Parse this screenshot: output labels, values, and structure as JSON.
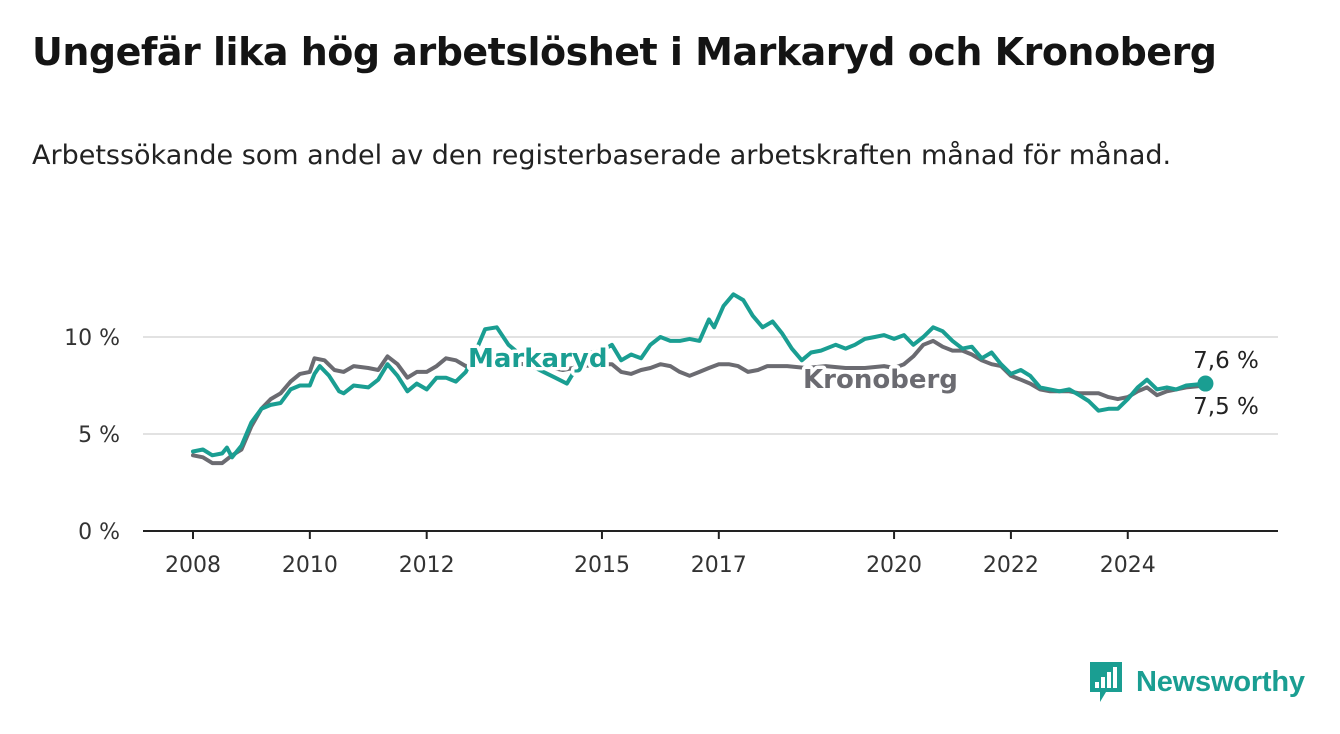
{
  "header": {
    "title": "Ungefär lika hög arbetslöshet i Markaryd och Kronoberg",
    "subtitle": "Arbetssökande som andel av den registerbaserade arbetskraften månad för månad."
  },
  "brand": {
    "name": "Newsworthy",
    "icon": "newsworthy-logo-icon",
    "color": "#1a9e92"
  },
  "chart_data": {
    "type": "line",
    "title": "Ungefär lika hög arbetslöshet i Markaryd och Kronoberg",
    "subtitle": "Arbetssökande som andel av den registerbaserade arbetskraften månad för månad.",
    "xlabel": "",
    "ylabel": "",
    "xlim": [
      2008.0,
      2025.75
    ],
    "ylim": [
      0,
      10
    ],
    "y_ticks": [
      0,
      5,
      10
    ],
    "y_tick_labels": [
      "0 %",
      "5 %",
      "10 %"
    ],
    "x_ticks": [
      2008,
      2010,
      2012,
      2015,
      2017,
      2020,
      2022,
      2024
    ],
    "x_tick_labels": [
      "2008",
      "2010",
      "2012",
      "2015",
      "2017",
      "2020",
      "2022",
      "2024"
    ],
    "grid": true,
    "legend": "inline labels",
    "series": [
      {
        "name": "Markaryd",
        "color": "#1a9e92",
        "end_label": "7,6 %",
        "points": [
          [
            2008.0,
            4.1
          ],
          [
            2008.17,
            4.2
          ],
          [
            2008.33,
            3.9
          ],
          [
            2008.5,
            4.0
          ],
          [
            2008.58,
            4.3
          ],
          [
            2008.67,
            3.8
          ],
          [
            2008.83,
            4.4
          ],
          [
            2009.0,
            5.6
          ],
          [
            2009.17,
            6.3
          ],
          [
            2009.33,
            6.5
          ],
          [
            2009.5,
            6.6
          ],
          [
            2009.67,
            7.3
          ],
          [
            2009.83,
            7.5
          ],
          [
            2010.0,
            7.5
          ],
          [
            2010.08,
            8.1
          ],
          [
            2010.17,
            8.5
          ],
          [
            2010.33,
            8.0
          ],
          [
            2010.5,
            7.2
          ],
          [
            2010.58,
            7.1
          ],
          [
            2010.75,
            7.5
          ],
          [
            2011.0,
            7.4
          ],
          [
            2011.17,
            7.8
          ],
          [
            2011.33,
            8.6
          ],
          [
            2011.5,
            8.0
          ],
          [
            2011.67,
            7.2
          ],
          [
            2011.83,
            7.6
          ],
          [
            2012.0,
            7.3
          ],
          [
            2012.17,
            7.9
          ],
          [
            2012.33,
            7.9
          ],
          [
            2012.5,
            7.7
          ],
          [
            2012.67,
            8.2
          ],
          [
            2012.83,
            9.2
          ],
          [
            2013.0,
            10.4
          ],
          [
            2013.2,
            10.5
          ],
          [
            2013.4,
            9.6
          ],
          [
            2013.6,
            9.1
          ],
          [
            2013.8,
            8.5
          ],
          [
            2014.0,
            8.2
          ],
          [
            2014.2,
            7.9
          ],
          [
            2014.4,
            7.6
          ],
          [
            2014.6,
            8.6
          ],
          [
            2014.8,
            9.2
          ],
          [
            2015.0,
            9.3
          ],
          [
            2015.17,
            9.6
          ],
          [
            2015.33,
            8.8
          ],
          [
            2015.5,
            9.1
          ],
          [
            2015.67,
            8.9
          ],
          [
            2015.83,
            9.6
          ],
          [
            2016.0,
            10.0
          ],
          [
            2016.17,
            9.8
          ],
          [
            2016.33,
            9.8
          ],
          [
            2016.5,
            9.9
          ],
          [
            2016.67,
            9.8
          ],
          [
            2016.83,
            10.9
          ],
          [
            2016.92,
            10.5
          ],
          [
            2017.08,
            11.6
          ],
          [
            2017.25,
            12.2
          ],
          [
            2017.42,
            11.9
          ],
          [
            2017.58,
            11.1
          ],
          [
            2017.75,
            10.5
          ],
          [
            2017.92,
            10.8
          ],
          [
            2018.08,
            10.2
          ],
          [
            2018.25,
            9.4
          ],
          [
            2018.42,
            8.8
          ],
          [
            2018.58,
            9.2
          ],
          [
            2018.75,
            9.3
          ],
          [
            2019.0,
            9.6
          ],
          [
            2019.17,
            9.4
          ],
          [
            2019.33,
            9.6
          ],
          [
            2019.5,
            9.9
          ],
          [
            2019.67,
            10.0
          ],
          [
            2019.83,
            10.1
          ],
          [
            2020.0,
            9.9
          ],
          [
            2020.17,
            10.1
          ],
          [
            2020.33,
            9.6
          ],
          [
            2020.5,
            10.0
          ],
          [
            2020.67,
            10.5
          ],
          [
            2020.83,
            10.3
          ],
          [
            2021.0,
            9.8
          ],
          [
            2021.17,
            9.4
          ],
          [
            2021.33,
            9.5
          ],
          [
            2021.5,
            8.9
          ],
          [
            2021.67,
            9.2
          ],
          [
            2021.83,
            8.6
          ],
          [
            2022.0,
            8.1
          ],
          [
            2022.17,
            8.3
          ],
          [
            2022.33,
            8.0
          ],
          [
            2022.5,
            7.4
          ],
          [
            2022.67,
            7.3
          ],
          [
            2022.83,
            7.2
          ],
          [
            2023.0,
            7.3
          ],
          [
            2023.17,
            7.0
          ],
          [
            2023.33,
            6.7
          ],
          [
            2023.5,
            6.2
          ],
          [
            2023.67,
            6.3
          ],
          [
            2023.83,
            6.3
          ],
          [
            2024.0,
            6.8
          ],
          [
            2024.17,
            7.4
          ],
          [
            2024.33,
            7.8
          ],
          [
            2024.5,
            7.3
          ],
          [
            2024.67,
            7.4
          ],
          [
            2024.83,
            7.3
          ],
          [
            2025.0,
            7.5
          ],
          [
            2025.33,
            7.6
          ]
        ]
      },
      {
        "name": "Kronoberg",
        "color": "#6b6b71",
        "end_label": "7,5 %",
        "points": [
          [
            2008.0,
            3.9
          ],
          [
            2008.17,
            3.8
          ],
          [
            2008.33,
            3.5
          ],
          [
            2008.5,
            3.5
          ],
          [
            2008.67,
            3.9
          ],
          [
            2008.83,
            4.2
          ],
          [
            2009.0,
            5.4
          ],
          [
            2009.17,
            6.3
          ],
          [
            2009.33,
            6.8
          ],
          [
            2009.5,
            7.1
          ],
          [
            2009.67,
            7.7
          ],
          [
            2009.83,
            8.1
          ],
          [
            2010.0,
            8.2
          ],
          [
            2010.08,
            8.9
          ],
          [
            2010.25,
            8.8
          ],
          [
            2010.42,
            8.3
          ],
          [
            2010.58,
            8.2
          ],
          [
            2010.75,
            8.5
          ],
          [
            2011.0,
            8.4
          ],
          [
            2011.17,
            8.3
          ],
          [
            2011.33,
            9.0
          ],
          [
            2011.5,
            8.6
          ],
          [
            2011.67,
            7.9
          ],
          [
            2011.83,
            8.2
          ],
          [
            2012.0,
            8.2
          ],
          [
            2012.17,
            8.5
          ],
          [
            2012.33,
            8.9
          ],
          [
            2012.5,
            8.8
          ],
          [
            2012.67,
            8.5
          ],
          [
            2012.83,
            8.6
          ],
          [
            2013.0,
            8.7
          ],
          [
            2013.33,
            8.7
          ],
          [
            2013.67,
            8.6
          ],
          [
            2014.0,
            8.5
          ],
          [
            2014.33,
            8.3
          ],
          [
            2014.67,
            8.5
          ],
          [
            2015.0,
            8.6
          ],
          [
            2015.17,
            8.6
          ],
          [
            2015.33,
            8.2
          ],
          [
            2015.5,
            8.1
          ],
          [
            2015.67,
            8.3
          ],
          [
            2015.83,
            8.4
          ],
          [
            2016.0,
            8.6
          ],
          [
            2016.17,
            8.5
          ],
          [
            2016.33,
            8.2
          ],
          [
            2016.5,
            8.0
          ],
          [
            2016.67,
            8.2
          ],
          [
            2016.83,
            8.4
          ],
          [
            2017.0,
            8.6
          ],
          [
            2017.17,
            8.6
          ],
          [
            2017.33,
            8.5
          ],
          [
            2017.5,
            8.2
          ],
          [
            2017.67,
            8.3
          ],
          [
            2017.83,
            8.5
          ],
          [
            2018.0,
            8.5
          ],
          [
            2018.17,
            8.5
          ],
          [
            2018.5,
            8.4
          ],
          [
            2018.83,
            8.5
          ],
          [
            2019.17,
            8.4
          ],
          [
            2019.5,
            8.4
          ],
          [
            2019.83,
            8.5
          ],
          [
            2020.0,
            8.4
          ],
          [
            2020.17,
            8.6
          ],
          [
            2020.33,
            9.0
          ],
          [
            2020.5,
            9.6
          ],
          [
            2020.67,
            9.8
          ],
          [
            2020.83,
            9.5
          ],
          [
            2021.0,
            9.3
          ],
          [
            2021.17,
            9.3
          ],
          [
            2021.33,
            9.1
          ],
          [
            2021.5,
            8.8
          ],
          [
            2021.67,
            8.6
          ],
          [
            2021.83,
            8.5
          ],
          [
            2022.0,
            8.0
          ],
          [
            2022.17,
            7.8
          ],
          [
            2022.33,
            7.6
          ],
          [
            2022.5,
            7.3
          ],
          [
            2022.67,
            7.2
          ],
          [
            2022.83,
            7.2
          ],
          [
            2023.0,
            7.2
          ],
          [
            2023.17,
            7.1
          ],
          [
            2023.33,
            7.1
          ],
          [
            2023.5,
            7.1
          ],
          [
            2023.67,
            6.9
          ],
          [
            2023.83,
            6.8
          ],
          [
            2024.0,
            6.9
          ],
          [
            2024.17,
            7.2
          ],
          [
            2024.33,
            7.4
          ],
          [
            2024.5,
            7.0
          ],
          [
            2024.67,
            7.2
          ],
          [
            2024.83,
            7.3
          ],
          [
            2025.0,
            7.4
          ],
          [
            2025.33,
            7.5
          ]
        ]
      }
    ]
  }
}
